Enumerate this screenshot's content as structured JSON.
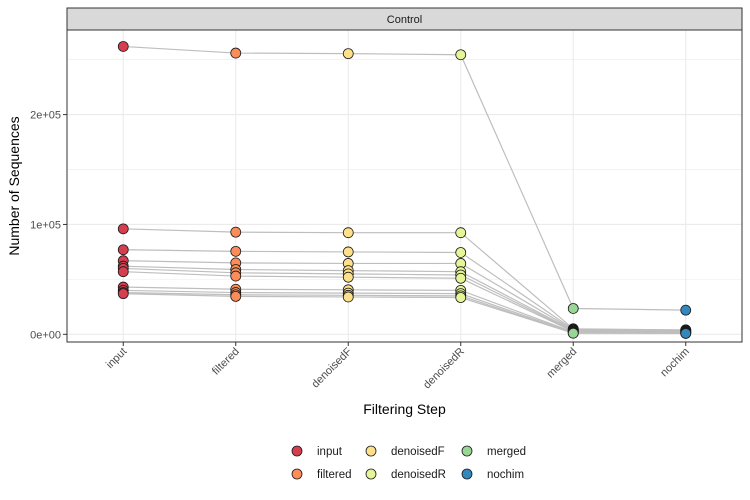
{
  "chart_data": {
    "type": "line",
    "panel_title": "Control",
    "xlabel": "Filtering Step",
    "ylabel": "Number of Sequences",
    "categories": [
      "input",
      "filtered",
      "denoisedF",
      "denoisedR",
      "merged",
      "nochim"
    ],
    "ylim": [
      -7000,
      277000
    ],
    "y_ticks": [
      {
        "value": 0,
        "label": "0e+00"
      },
      {
        "value": 100000,
        "label": "1e+05"
      },
      {
        "value": 200000,
        "label": "2e+05"
      }
    ],
    "grid": true,
    "legend_position": "bottom",
    "colors": {
      "input": "#d53e4f",
      "filtered": "#fc8d59",
      "denoisedF": "#fee08b",
      "denoisedR": "#e6f598",
      "merged": "#99d594",
      "nochim": "#3288bd",
      "line": "#bebebe",
      "grid": "#ebebeb",
      "strip": "#d9d9d9"
    },
    "series": [
      {
        "values": [
          262000,
          256000,
          255500,
          254500,
          23500,
          22000
        ]
      },
      {
        "values": [
          96000,
          93000,
          92500,
          92500,
          5000,
          4000
        ]
      },
      {
        "values": [
          77000,
          75500,
          75000,
          74500,
          4500,
          4000
        ]
      },
      {
        "values": [
          67000,
          65000,
          64500,
          64500,
          4000,
          3500
        ]
      },
      {
        "values": [
          62000,
          59000,
          58000,
          57000,
          3500,
          3000
        ]
      },
      {
        "values": [
          60000,
          56000,
          55000,
          54000,
          3000,
          2500
        ]
      },
      {
        "values": [
          57000,
          53000,
          52000,
          51000,
          2500,
          2000
        ]
      },
      {
        "values": [
          43000,
          41000,
          40500,
          40000,
          2000,
          1500
        ]
      },
      {
        "values": [
          40000,
          38000,
          37500,
          37000,
          1500,
          1200
        ]
      },
      {
        "values": [
          38000,
          36000,
          35500,
          35000,
          1200,
          1000
        ]
      },
      {
        "values": [
          37000,
          34500,
          34000,
          33500,
          1000,
          800
        ]
      }
    ]
  },
  "legend": {
    "items": [
      {
        "key": "input",
        "label": "input"
      },
      {
        "key": "filtered",
        "label": "filtered"
      },
      {
        "key": "denoisedF",
        "label": "denoisedF"
      },
      {
        "key": "denoisedR",
        "label": "denoisedR"
      },
      {
        "key": "merged",
        "label": "merged"
      },
      {
        "key": "nochim",
        "label": "nochim"
      }
    ]
  }
}
